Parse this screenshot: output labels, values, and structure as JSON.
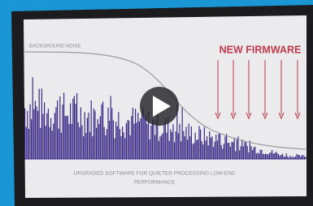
{
  "screen": {
    "noise_label": "BACKGROUND NOISE",
    "firmware_label": "NEW FIRMWARE",
    "caption": [
      "UPGRADED SOFTWARE FOR QUIETER PROCESSING LOW-END",
      "PERFORMANCE"
    ]
  }
}
